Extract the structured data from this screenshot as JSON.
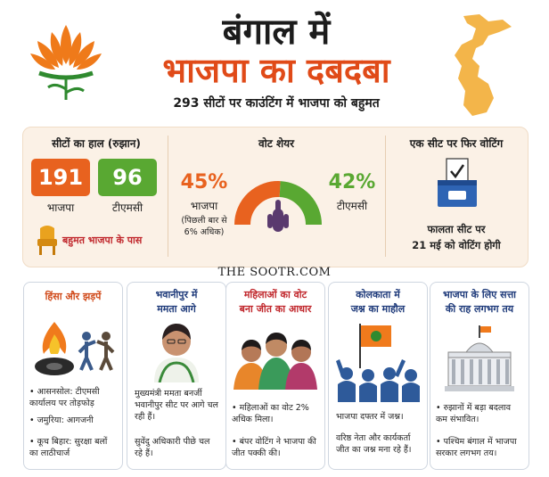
{
  "header": {
    "title_line1": "बंगाल में",
    "title_line2": "भाजपा का दबदबा",
    "subtitle": "293 सीटों पर काउंटिंग में भाजपा को बहुमत"
  },
  "seats": {
    "heading": "सीटों का हाल (रुझान)",
    "bjp_value": "191",
    "bjp_label": "भाजपा",
    "tmc_value": "96",
    "tmc_label": "टीएमसी",
    "majority_note": "बहुमत भाजपा के पास"
  },
  "vote_share": {
    "heading": "वोट शेयर",
    "bjp_pct": "45%",
    "bjp_label": "भाजपा",
    "bjp_note_line1": "(पिछली बार से",
    "bjp_note_line2": "6% अधिक)",
    "tmc_pct": "42%",
    "tmc_label": "टीएमसी",
    "bjp_share": 45,
    "tmc_share": 42
  },
  "revote": {
    "heading": "एक सीट पर फिर वोटिंग",
    "line1": "फालता सीट पर",
    "line2": "21 मई को वोटिंग होगी"
  },
  "watermark": "THE SOOTR.COM",
  "cards": [
    {
      "title_line1": "हिंसा और झड़पें",
      "title_line2": "",
      "bullets": [
        "आसनसोल: टीएमसी कार्यालय पर तोड़फोड़",
        "जमुरिया: आगजनी",
        "कूच बिहार: सुरक्षा बलों का लाठीचार्ज"
      ]
    },
    {
      "title_line1": "भवानीपुर में",
      "title_line2": "ममता आगे",
      "bullets": [
        "मुख्यमंत्री ममता बनर्जी भवानीपुर सीट पर आगे चल रही हैं।",
        "सुवेंदु अधिकारी पीछे चल रहे हैं।"
      ]
    },
    {
      "title_line1": "महिलाओं का वोट",
      "title_line2": "बना जीत का आधार",
      "bullets": [
        "महिलाओं का वोट 2% अधिक मिला।",
        "बंपर वोटिंग ने भाजपा की जीत पक्की की।"
      ]
    },
    {
      "title_line1": "कोलकाता में",
      "title_line2": "जश्न का माहौल",
      "bullets": [
        "भाजपा दफ्तर में जश्न।",
        "वरिष्ठ नेता और कार्यकर्ता जीत का जश्न मना रहे हैं।"
      ]
    },
    {
      "title_line1": "भाजपा के लिए सत्ता",
      "title_line2": "की राह लगभग तय",
      "bullets": [
        "रुझानों में बड़ा बदलाव कम संभावित।",
        "पश्चिम बंगाल में भाजपा सरकार लगभग तय।"
      ]
    }
  ],
  "colors": {
    "saffron": "#e8621f",
    "green": "#59a832",
    "title_red": "#e04a18",
    "majority_red": "#c0262b",
    "card_title_blue": "#1e3a7a"
  },
  "icons": [
    "lotus-icon",
    "bengal-map-icon",
    "throne-icon",
    "ballot-box-icon",
    "finger-ink-icon",
    "tire-fire-icon",
    "clash-figures-icon",
    "mamata-portrait-icon",
    "women-group-icon",
    "bjp-flag-crowd-icon",
    "assembly-building-icon"
  ]
}
